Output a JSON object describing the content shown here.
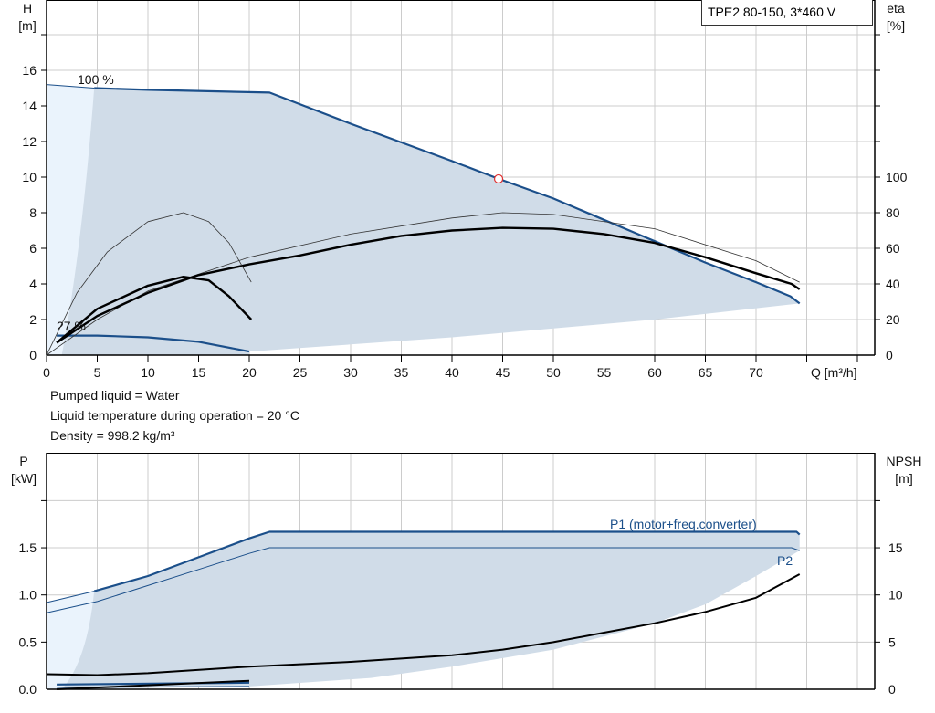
{
  "legend_box": "TPE2 80-150, 3*460 V",
  "notes": [
    "Pumped liquid = Water",
    "Liquid temperature during operation = 20 °C",
    "Density = 998.2 kg/m³"
  ],
  "colors": {
    "curve_blue": "#1b4f8a",
    "fill_dark": "#d0dce8",
    "fill_light": "#eaf3fc",
    "curve_black": "#000000",
    "grid": "#cccccc",
    "op_point": "#e03030"
  },
  "chart_data": [
    {
      "type": "line",
      "title": "",
      "xlabel": "Q [m³/h]",
      "ylabel": "H\n[m]",
      "ylabel_right": "eta\n[%]",
      "xlim": [
        0,
        81.5
      ],
      "ylim": [
        0,
        20
      ],
      "ylim_right": [
        0,
        200
      ],
      "x_ticks": [
        0,
        5,
        10,
        15,
        20,
        25,
        30,
        35,
        40,
        45,
        50,
        55,
        60,
        65,
        70
      ],
      "y_ticks": [
        0,
        2,
        4,
        6,
        8,
        10,
        12,
        14,
        16
      ],
      "y_ticks_right": [
        0,
        20,
        40,
        60,
        80,
        100
      ],
      "grid": true,
      "annotations": [
        "100 %",
        "27 %"
      ],
      "operating_point": {
        "Q": 44.6,
        "H": 9.9
      },
      "series": [
        {
          "role": "QH max speed",
          "unit": "m",
          "points": [
            [
              0,
              15.2
            ],
            [
              4.7,
              15.0
            ],
            [
              10,
              14.9
            ],
            [
              22,
              14.75
            ],
            [
              30,
              13
            ],
            [
              40,
              10.9
            ],
            [
              44.6,
              9.9
            ],
            [
              50,
              8.8
            ],
            [
              55,
              7.6
            ],
            [
              60,
              6.4
            ],
            [
              65,
              5.2
            ],
            [
              70,
              4.1
            ],
            [
              73.4,
              3.3
            ],
            [
              74.3,
              2.9
            ]
          ]
        },
        {
          "role": "QH min speed",
          "unit": "m",
          "points": [
            [
              1,
              1.1
            ],
            [
              5,
              1.1
            ],
            [
              10,
              1.0
            ],
            [
              15,
              0.75
            ],
            [
              20,
              0.2
            ]
          ]
        },
        {
          "role": "operating range lower boundary",
          "unit": "m",
          "points": [
            [
              20,
              0.2
            ],
            [
              30,
              0.6
            ],
            [
              40,
              1.0
            ],
            [
              50,
              1.5
            ],
            [
              60,
              2.0
            ],
            [
              74.3,
              2.9
            ]
          ]
        },
        {
          "role": "eta total max speed",
          "unit": "%",
          "points": [
            [
              1,
              7
            ],
            [
              5,
              22
            ],
            [
              10,
              35
            ],
            [
              15,
              45
            ],
            [
              20,
              51
            ],
            [
              25,
              56
            ],
            [
              30,
              62
            ],
            [
              35,
              67
            ],
            [
              40,
              70
            ],
            [
              45,
              71.5
            ],
            [
              50,
              71
            ],
            [
              55,
              68
            ],
            [
              60,
              63
            ],
            [
              65,
              55
            ],
            [
              70,
              46
            ],
            [
              73.5,
              40
            ],
            [
              74.3,
              37
            ]
          ]
        },
        {
          "role": "eta pump max speed",
          "unit": "%",
          "points": [
            [
              0,
              0
            ],
            [
              5,
              20
            ],
            [
              10,
              36
            ],
            [
              20,
              55
            ],
            [
              30,
              68
            ],
            [
              40,
              77
            ],
            [
              45,
              80
            ],
            [
              50,
              79
            ],
            [
              60,
              71
            ],
            [
              70,
              53
            ],
            [
              74.3,
              41
            ]
          ]
        },
        {
          "role": "eta total min speed",
          "unit": "%",
          "points": [
            [
              1,
              7
            ],
            [
              5,
              26
            ],
            [
              10,
              39
            ],
            [
              13.5,
              44
            ],
            [
              16,
              42
            ],
            [
              18,
              33
            ],
            [
              20.2,
              20
            ]
          ]
        },
        {
          "role": "eta pump min speed",
          "unit": "%",
          "points": [
            [
              0,
              0
            ],
            [
              3,
              35
            ],
            [
              6,
              58
            ],
            [
              10,
              75
            ],
            [
              13.5,
              80
            ],
            [
              16,
              75
            ],
            [
              18,
              63
            ],
            [
              20.2,
              41
            ]
          ]
        }
      ]
    },
    {
      "type": "line",
      "title": "",
      "xlabel": "",
      "ylabel": "P\n[kW]",
      "ylabel_right": "NPSH\n[m]",
      "xlim": [
        0,
        81.5
      ],
      "ylim": [
        0,
        2.5
      ],
      "ylim_right": [
        0,
        25
      ],
      "y_ticks": [
        "0.0",
        "0.5",
        "1.0",
        "1.5"
      ],
      "y_ticks_right": [
        0,
        5,
        10,
        15
      ],
      "grid": true,
      "series": [
        {
          "name": "P1 (motor+freq.converter)",
          "unit": "kW",
          "points": [
            [
              0,
              0.92
            ],
            [
              4.7,
              1.04
            ],
            [
              10,
              1.2
            ],
            [
              15,
              1.4
            ],
            [
              20,
              1.6
            ],
            [
              22,
              1.67
            ],
            [
              74,
              1.67
            ],
            [
              74.3,
              1.64
            ]
          ]
        },
        {
          "name": "P2",
          "unit": "kW",
          "points": [
            [
              0,
              0.81
            ],
            [
              5,
              0.93
            ],
            [
              10,
              1.1
            ],
            [
              15,
              1.27
            ],
            [
              20,
              1.44
            ],
            [
              22,
              1.5
            ],
            [
              73.5,
              1.5
            ],
            [
              74.3,
              1.47
            ]
          ]
        },
        {
          "role": "P range lower boundary",
          "unit": "kW",
          "points": [
            [
              20,
              0.03
            ],
            [
              32,
              0.12
            ],
            [
              40,
              0.24
            ],
            [
              50,
              0.42
            ],
            [
              60,
              0.7
            ],
            [
              65,
              0.9
            ],
            [
              70,
              1.2
            ],
            [
              74.3,
              1.47
            ]
          ]
        },
        {
          "role": "NPSH",
          "unit": "m",
          "points": [
            [
              0,
              1.6
            ],
            [
              5,
              1.5
            ],
            [
              10,
              1.7
            ],
            [
              20,
              2.4
            ],
            [
              30,
              2.9
            ],
            [
              40,
              3.6
            ],
            [
              45,
              4.2
            ],
            [
              50,
              5.0
            ],
            [
              55,
              6.0
            ],
            [
              60,
              7.0
            ],
            [
              65,
              8.2
            ],
            [
              70,
              9.7
            ],
            [
              74.3,
              12.2
            ]
          ]
        },
        {
          "role": "P1 min speed",
          "unit": "kW",
          "points": [
            [
              1,
              0.05
            ],
            [
              20,
              0.07
            ]
          ]
        },
        {
          "role": "P2 min speed",
          "unit": "kW",
          "points": [
            [
              1,
              0.02
            ],
            [
              20,
              0.03
            ]
          ]
        },
        {
          "role": "NPSH min speed",
          "unit": "m",
          "points": [
            [
              1,
              0.0
            ],
            [
              20,
              0.9
            ]
          ]
        }
      ]
    }
  ]
}
